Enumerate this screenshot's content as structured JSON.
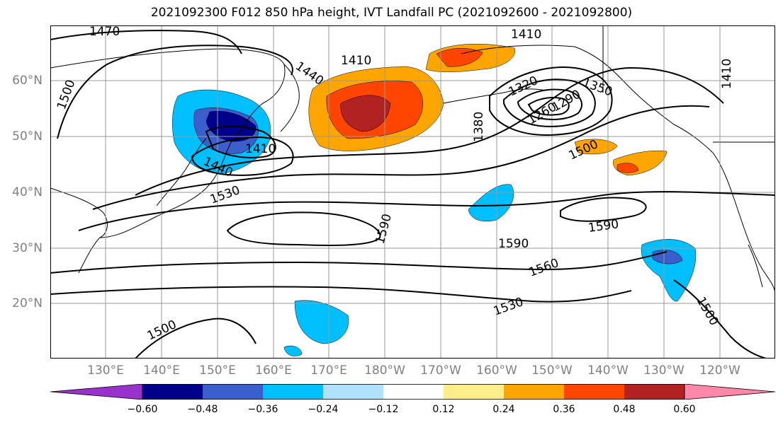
{
  "title": "2021092300 F012 850 hPa height, IVT Landfall PC (2021092600 - 2021092800)",
  "map": {
    "lat_labels": [
      "60°N",
      "50°N",
      "40°N",
      "30°N",
      "20°N"
    ],
    "lon_labels": [
      "130°E",
      "140°E",
      "150°E",
      "160°E",
      "170°E",
      "180°W",
      "170°W",
      "160°W",
      "150°W",
      "140°W",
      "130°W",
      "120°W"
    ],
    "contour_labels": [
      "1470",
      "1410",
      "1440",
      "1410",
      "1500",
      "1380",
      "1320",
      "1290",
      "1260",
      "1350",
      "1410",
      "1440",
      "1530",
      "1590",
      "1590",
      "1590",
      "1500",
      "1560",
      "1530",
      "1500",
      "1500",
      "1410"
    ],
    "gridlines": true
  },
  "colorbar": {
    "ticks": [
      "−0.60",
      "−0.48",
      "−0.36",
      "−0.24",
      "−0.12",
      "0.12",
      "0.24",
      "0.36",
      "0.48",
      "0.60"
    ],
    "colors": [
      "#9932cc",
      "#00008b",
      "#3a5fcd",
      "#00bfff",
      "#b0e2ff",
      "#ffffff",
      "#ffec8b",
      "#ffa500",
      "#ff4500",
      "#b22222",
      "#ff88aa"
    ]
  }
}
